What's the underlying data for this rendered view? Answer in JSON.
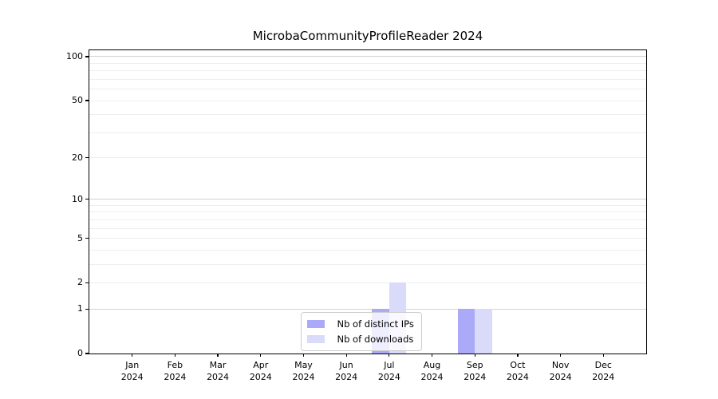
{
  "chart_data": {
    "type": "bar",
    "title": "MicrobaCommunityProfileReader 2024",
    "categories": [
      "Jan 2024",
      "Feb 2024",
      "Mar 2024",
      "Apr 2024",
      "May 2024",
      "Jun 2024",
      "Jul 2024",
      "Aug 2024",
      "Sep 2024",
      "Oct 2024",
      "Nov 2024",
      "Dec 2024"
    ],
    "series": [
      {
        "name": "Nb of distinct IPs",
        "color": "#aaaaf9",
        "values": [
          0,
          0,
          0,
          0,
          0,
          0,
          1,
          0,
          1,
          0,
          0,
          0
        ]
      },
      {
        "name": "Nb of downloads",
        "color": "#dadafa",
        "values": [
          0,
          0,
          0,
          0,
          0,
          0,
          2,
          0,
          1,
          0,
          0,
          0
        ]
      }
    ],
    "yticks": [
      0,
      1,
      2,
      5,
      10,
      20,
      50,
      100
    ],
    "ylim": [
      0,
      110.5
    ],
    "yscale": "log1p",
    "xlabel": "",
    "ylabel": "",
    "grid": {
      "major_values": [
        1,
        10,
        100
      ],
      "minor_values": [
        2,
        3,
        4,
        5,
        6,
        7,
        8,
        9,
        20,
        30,
        40,
        50,
        60,
        70,
        80,
        90
      ],
      "major_color": "#d0d0d0",
      "minor_color": "#eeeeee"
    },
    "legend_location": "lower center"
  }
}
